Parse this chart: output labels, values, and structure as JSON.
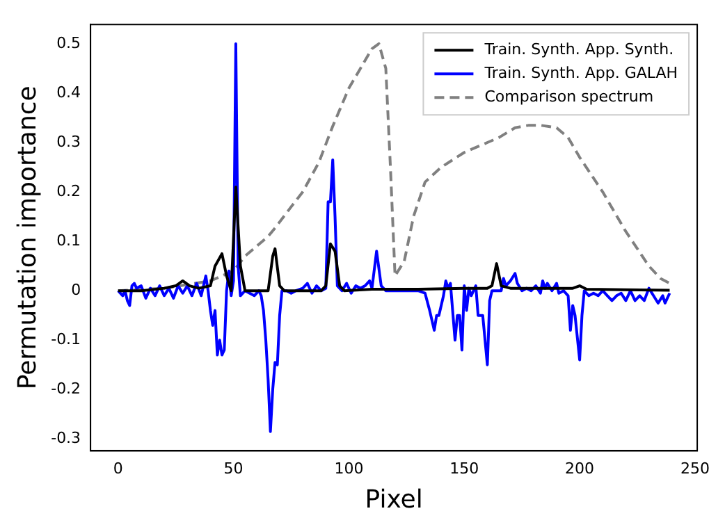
{
  "chart_data": {
    "type": "line",
    "xlabel": "Pixel",
    "ylabel": "Permutation importance",
    "xlim": [
      -11.95,
      250.95
    ],
    "ylim": [
      -0.324,
      0.539
    ],
    "xticks": [
      0,
      50,
      100,
      150,
      200,
      250
    ],
    "yticks": [
      -0.3,
      -0.2,
      -0.1,
      0.0,
      0.1,
      0.2,
      0.3,
      0.4,
      0.5
    ],
    "grid": false,
    "legend": "top right",
    "series": [
      {
        "name": "Train. Synth. App. Synth.",
        "color": "#000000",
        "line_style": "solid",
        "x": [
          0,
          10,
          20,
          25,
          28,
          31,
          35,
          40,
          42,
          45,
          47,
          49,
          51,
          53,
          55,
          60,
          65,
          67,
          68,
          70,
          72,
          80,
          88,
          90,
          92,
          94,
          96,
          98,
          110,
          130,
          150,
          160,
          162,
          164,
          166,
          170,
          190,
          197,
          200,
          203,
          220,
          239
        ],
        "values": [
          0,
          0,
          0.005,
          0.01,
          0.02,
          0.01,
          0.005,
          0.01,
          0.05,
          0.075,
          0.03,
          0,
          0.21,
          0.05,
          0,
          0,
          0,
          0.07,
          0.085,
          0.01,
          0,
          0,
          0,
          0.01,
          0.095,
          0.08,
          0.01,
          0,
          0.003,
          0.003,
          0.005,
          0.005,
          0.01,
          0.055,
          0.01,
          0.005,
          0.005,
          0.005,
          0.01,
          0.003,
          0.002,
          0.001
        ]
      },
      {
        "name": "Train. Synth. App. GALAH",
        "color": "#0000ff",
        "line_style": "solid",
        "x": [
          0,
          2,
          3,
          4,
          5,
          6,
          7,
          8,
          10,
          12,
          14,
          16,
          18,
          20,
          22,
          24,
          26,
          28,
          30,
          32,
          34,
          36,
          38,
          39,
          40,
          41,
          42,
          43,
          44,
          45,
          46,
          47,
          48,
          49,
          50,
          51,
          52,
          53,
          55,
          57,
          59,
          61,
          62,
          63,
          64,
          65,
          66,
          67,
          68,
          69,
          70,
          71,
          73,
          75,
          77,
          80,
          82,
          84,
          86,
          88,
          90,
          91,
          92,
          93,
          94,
          95,
          97,
          99,
          101,
          103,
          105,
          107,
          109,
          110,
          112,
          114,
          116,
          120,
          130,
          133,
          135,
          137,
          138,
          139,
          141,
          142,
          143,
          144,
          146,
          147,
          148,
          149,
          150,
          151,
          152,
          153,
          155,
          156,
          158,
          160,
          161,
          162,
          164,
          166,
          167,
          168,
          170,
          172,
          173,
          175,
          177,
          179,
          181,
          183,
          184,
          185,
          186,
          188,
          190,
          191,
          193,
          195,
          196,
          197,
          198,
          200,
          201,
          202,
          204,
          206,
          208,
          210,
          212,
          214,
          216,
          218,
          220,
          222,
          224,
          226,
          228,
          230,
          232,
          234,
          236,
          237,
          239
        ],
        "values": [
          0,
          -0.01,
          0,
          -0.02,
          -0.03,
          0.01,
          0.015,
          0.005,
          0.01,
          -0.015,
          0.005,
          -0.01,
          0.01,
          -0.01,
          0.005,
          -0.015,
          0.01,
          -0.005,
          0.01,
          -0.01,
          0.015,
          -0.01,
          0.03,
          0,
          -0.04,
          -0.07,
          -0.04,
          -0.13,
          -0.1,
          -0.13,
          -0.12,
          0,
          0.04,
          -0.01,
          0.02,
          0.5,
          0.05,
          -0.01,
          0,
          -0.005,
          -0.01,
          0,
          -0.01,
          -0.04,
          -0.1,
          -0.18,
          -0.285,
          -0.2,
          -0.145,
          -0.15,
          -0.05,
          0,
          0,
          -0.005,
          0,
          0.005,
          0.015,
          -0.005,
          0.01,
          0,
          0.005,
          0.18,
          0.18,
          0.265,
          0.15,
          0.01,
          0,
          0.015,
          -0.005,
          0.01,
          0.005,
          0.01,
          0.02,
          0.005,
          0.08,
          0.01,
          0,
          0,
          0,
          -0.005,
          -0.04,
          -0.08,
          -0.05,
          -0.05,
          -0.01,
          0.02,
          0.005,
          0.015,
          -0.1,
          -0.05,
          -0.05,
          -0.12,
          0.01,
          -0.04,
          0.005,
          -0.01,
          0.01,
          -0.05,
          -0.05,
          -0.15,
          -0.02,
          0,
          0,
          0,
          0.025,
          0.01,
          0.02,
          0.035,
          0.015,
          0,
          0.005,
          0,
          0.01,
          -0.005,
          0.02,
          0.005,
          0.015,
          0,
          0.015,
          -0.005,
          0,
          -0.01,
          -0.08,
          -0.03,
          -0.05,
          -0.14,
          -0.05,
          0,
          -0.01,
          -0.005,
          -0.01,
          0,
          -0.01,
          -0.02,
          -0.01,
          -0.005,
          -0.02,
          0,
          -0.02,
          -0.01,
          -0.02,
          0.005,
          -0.01,
          -0.025,
          -0.01,
          -0.025,
          -0.005
        ]
      },
      {
        "name": "Comparison spectrum",
        "color": "#808080",
        "line_style": "dashed",
        "x": [
          0,
          20,
          40,
          45,
          50,
          55,
          60,
          65,
          68,
          75,
          80,
          87,
          93,
          100,
          105,
          110,
          113,
          116,
          118,
          120,
          124,
          128,
          133,
          140,
          150,
          160,
          165,
          172,
          178,
          183,
          190,
          195,
          200,
          210,
          220,
          230,
          235,
          239
        ],
        "values": [
          0,
          0.005,
          0.02,
          0.03,
          0.04,
          0.07,
          0.09,
          0.11,
          0.127,
          0.17,
          0.2,
          0.26,
          0.333,
          0.41,
          0.45,
          0.49,
          0.5,
          0.45,
          0.25,
          0.03,
          0.06,
          0.15,
          0.22,
          0.25,
          0.28,
          0.3,
          0.31,
          0.33,
          0.335,
          0.335,
          0.33,
          0.31,
          0.27,
          0.2,
          0.12,
          0.05,
          0.025,
          0.015
        ]
      }
    ]
  }
}
